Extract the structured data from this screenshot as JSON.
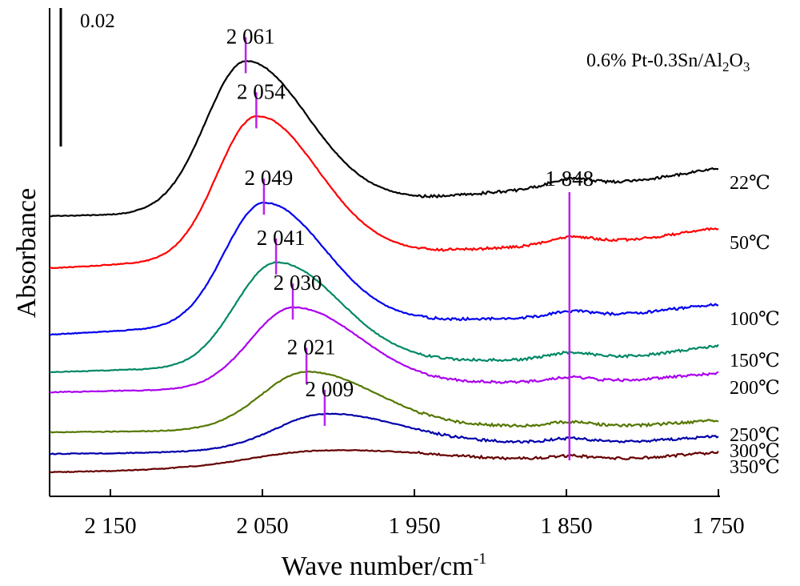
{
  "chart_data": {
    "type": "line",
    "title": "",
    "sample_label": {
      "main": "0.6% Pt-0.3Sn/Al",
      "sub": "2",
      "mid": "O",
      "sub2": "3"
    },
    "scale_bar_label": "0.02",
    "xlabel": {
      "main": "Wave number/cm",
      "sup": "-1"
    },
    "ylabel": "Absorbance",
    "xlim": [
      2190,
      1750
    ],
    "x_ticks": [
      {
        "value": 2150,
        "label": "2 150"
      },
      {
        "value": 2050,
        "label": "2 050"
      },
      {
        "value": 1950,
        "label": "1 950"
      },
      {
        "value": 1850,
        "label": "1 850"
      },
      {
        "value": 1750,
        "label": "1 750"
      }
    ],
    "colors": {
      "22℃": "#000000",
      "50℃": "#ff0000",
      "100℃": "#0000ee",
      "150℃": "#008866",
      "200℃": "#aa00ee",
      "250℃": "#557700",
      "300℃": "#0000aa",
      "350℃": "#660000",
      "marker": "#bb22ee"
    },
    "series": [
      {
        "name": "22℃",
        "peak": 2061,
        "baseline": 272,
        "peak_h": 183,
        "width": 26,
        "tail": [
          270,
          268,
          262,
          258,
          252,
          248,
          240,
          233,
          225,
          210
        ]
      },
      {
        "name": "50℃",
        "peak": 2054,
        "baseline": 335,
        "peak_h": 178,
        "width": 26,
        "tail": [
          335,
          330,
          328,
          322,
          318,
          315,
          310,
          305,
          298,
          285
        ]
      },
      {
        "name": "100℃",
        "peak": 2049,
        "baseline": 418,
        "peak_h": 155,
        "width": 26,
        "tail": [
          418,
          413,
          410,
          408,
          405,
          401,
          398,
          397,
          390,
          380
        ]
      },
      {
        "name": "150℃",
        "peak": 2041,
        "baseline": 465,
        "peak_h": 130,
        "width": 27,
        "tail": [
          465,
          462,
          461,
          458,
          455,
          452,
          450,
          448,
          444,
          432
        ]
      },
      {
        "name": "200℃",
        "peak": 2030,
        "baseline": 490,
        "peak_h": 100,
        "width": 28,
        "tail": [
          490,
          488,
          487,
          485,
          482,
          480,
          478,
          478,
          474,
          466
        ]
      },
      {
        "name": "250℃",
        "peak": 2021,
        "baseline": 540,
        "peak_h": 72,
        "width": 30,
        "tail": [
          540,
          539,
          538,
          537,
          536,
          535,
          533,
          533,
          531,
          525
        ]
      },
      {
        "name": "300℃",
        "peak": 2009,
        "baseline": 567,
        "peak_h": 42,
        "width": 32,
        "tail": [
          567,
          566,
          564,
          561,
          558,
          556,
          554,
          553,
          551,
          545
        ]
      },
      {
        "name": "350℃",
        "peak": 2009,
        "baseline": 590,
        "peak_h": 18,
        "width": 45,
        "tail": [
          590,
          588,
          585,
          582,
          580,
          578,
          577,
          575,
          572,
          565
        ]
      }
    ],
    "peak_markers": [
      {
        "wavenumber": 2061,
        "label": "2 061"
      },
      {
        "wavenumber": 2054,
        "label": "2 054"
      },
      {
        "wavenumber": 2049,
        "label": "2 049"
      },
      {
        "wavenumber": 2041,
        "label": "2 041"
      },
      {
        "wavenumber": 2030,
        "label": "2 030"
      },
      {
        "wavenumber": 2021,
        "label": "2 021"
      },
      {
        "wavenumber": 2009,
        "label": "2 009"
      },
      {
        "wavenumber": 1848,
        "label": "1 848"
      }
    ]
  }
}
